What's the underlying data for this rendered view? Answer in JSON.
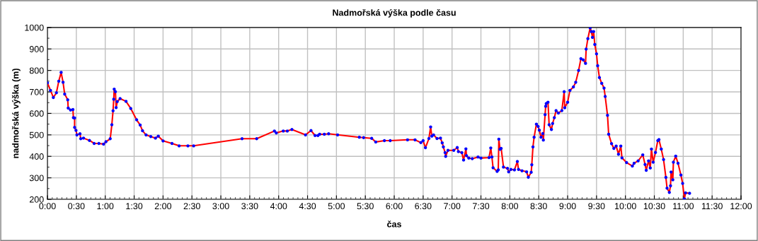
{
  "chart_data": {
    "type": "line",
    "title": "Nadmořská výška podle času",
    "xlabel": "čas",
    "ylabel": "nadmořská výška (m)",
    "xlim": [
      0,
      12
    ],
    "ylim": [
      200,
      1000
    ],
    "xticks": [
      {
        "value": 0,
        "label": "0:00"
      },
      {
        "value": 0.5,
        "label": "0:30"
      },
      {
        "value": 1,
        "label": "1:00"
      },
      {
        "value": 1.5,
        "label": "1:30"
      },
      {
        "value": 2,
        "label": "2:00"
      },
      {
        "value": 2.5,
        "label": "2:30"
      },
      {
        "value": 3,
        "label": "3:00"
      },
      {
        "value": 3.5,
        "label": "3:30"
      },
      {
        "value": 4,
        "label": "4:00"
      },
      {
        "value": 4.5,
        "label": "4:30"
      },
      {
        "value": 5,
        "label": "5:00"
      },
      {
        "value": 5.5,
        "label": "5:30"
      },
      {
        "value": 6,
        "label": "6:00"
      },
      {
        "value": 6.5,
        "label": "6:30"
      },
      {
        "value": 7,
        "label": "7:00"
      },
      {
        "value": 7.5,
        "label": "7:30"
      },
      {
        "value": 8,
        "label": "8:00"
      },
      {
        "value": 8.5,
        "label": "8:30"
      },
      {
        "value": 9,
        "label": "9:00"
      },
      {
        "value": 9.5,
        "label": "9:30"
      },
      {
        "value": 10,
        "label": "10:00"
      },
      {
        "value": 10.5,
        "label": "10:30"
      },
      {
        "value": 11,
        "label": "11:00"
      },
      {
        "value": 11.5,
        "label": "11:30"
      },
      {
        "value": 12,
        "label": "12:00"
      }
    ],
    "yticks": [
      200,
      300,
      400,
      500,
      600,
      700,
      800,
      900,
      1000
    ],
    "grid": true,
    "x": [
      0,
      0.053,
      0.102,
      0.155,
      0.196,
      0.237,
      0.27,
      0.298,
      0.351,
      0.359,
      0.4,
      0.441,
      0.449,
      0.47,
      0.47,
      0.494,
      0.51,
      0.563,
      0.576,
      0.624,
      0.727,
      0.808,
      0.89,
      0.971,
      1.012,
      1.086,
      1.114,
      1.135,
      1.147,
      1.155,
      1.176,
      1.188,
      1.208,
      1.257,
      1.359,
      1.441,
      1.543,
      1.604,
      1.645,
      1.706,
      1.788,
      1.869,
      1.918,
      2.0,
      2.155,
      2.278,
      2.43,
      2.53,
      3.367,
      3.62,
      3.927,
      3.96,
      4.08,
      4.15,
      4.23,
      4.465,
      4.56,
      4.63,
      4.68,
      4.71,
      4.79,
      4.865,
      5.02,
      5.396,
      5.47,
      5.61,
      5.68,
      5.83,
      5.93,
      6.23,
      6.36,
      6.46,
      6.5,
      6.54,
      6.6,
      6.63,
      6.65,
      6.68,
      6.74,
      6.8,
      6.83,
      6.85,
      6.88,
      6.89,
      6.93,
      7.03,
      7.09,
      7.11,
      7.17,
      7.2,
      7.24,
      7.25,
      7.29,
      7.35,
      7.45,
      7.5,
      7.64,
      7.67,
      7.69,
      7.71,
      7.78,
      7.8,
      7.81,
      7.83,
      7.85,
      7.89,
      7.96,
      7.98,
      8.02,
      8.08,
      8.13,
      8.15,
      8.21,
      8.29,
      8.32,
      8.37,
      8.38,
      8.4,
      8.42,
      8.46,
      8.49,
      8.51,
      8.54,
      8.57,
      8.58,
      8.61,
      8.62,
      8.63,
      8.66,
      8.68,
      8.72,
      8.74,
      8.77,
      8.8,
      8.84,
      8.9,
      8.94,
      8.95,
      9.0,
      9.04,
      9.1,
      9.14,
      9.19,
      9.23,
      9.27,
      9.31,
      9.32,
      9.35,
      9.39,
      9.41,
      9.43,
      9.45,
      9.47,
      9.5,
      9.52,
      9.55,
      9.59,
      9.63,
      9.65,
      9.69,
      9.71,
      9.76,
      9.8,
      9.84,
      9.88,
      9.92,
      9.94,
      10.02,
      10.12,
      10.15,
      10.22,
      10.3,
      10.34,
      10.36,
      10.4,
      10.43,
      10.45,
      10.48,
      10.52,
      10.56,
      10.58,
      10.62,
      10.66,
      10.7,
      10.72,
      10.76,
      10.78,
      10.79,
      10.82,
      10.83,
      10.87,
      10.91,
      10.96,
      10.99,
      11.02,
      11.04,
      11.11
    ],
    "series": [
      {
        "color": "#ff0000",
        "marker": "none",
        "values": [
          742,
          707,
          674,
          696,
          750,
          791,
          745,
          690,
          663,
          625,
          616,
          618,
          580,
          579,
          535,
          521,
          500,
          505,
          482,
          485,
          474,
          460,
          460,
          457,
          468,
          482,
          547,
          612,
          666,
          713,
          701,
          627,
          655,
          669,
          656,
          623,
          570,
          546,
          519,
          500,
          492,
          485,
          494,
          472,
          460,
          449,
          449,
          449,
          482,
          482,
          518,
          509,
          518,
          518,
          525,
          500,
          520,
          497,
          497,
          503,
          503,
          505,
          500,
          489,
          487,
          484,
          467,
          473,
          473,
          477,
          477,
          464,
          473,
          440,
          483,
          537,
          494,
          500,
          483,
          485,
          463,
          444,
          417,
          400,
          428,
          428,
          441,
          422,
          417,
          383,
          435,
          403,
          392,
          389,
          397,
          392,
          394,
          439,
          397,
          347,
          330,
          337,
          480,
          433,
          437,
          350,
          344,
          328,
          339,
          337,
          376,
          339,
          333,
          328,
          303,
          326,
          361,
          444,
          489,
          550,
          539,
          522,
          489,
          506,
          476,
          594,
          633,
          646,
          652,
          547,
          525,
          553,
          580,
          613,
          602,
          613,
          701,
          626,
          652,
          707,
          723,
          745,
          800,
          855,
          849,
          833,
          899,
          948,
          998,
          981,
          954,
          981,
          921,
          877,
          822,
          767,
          740,
          718,
          679,
          591,
          503,
          459,
          437,
          448,
          410,
          448,
          393,
          371,
          355,
          368,
          379,
          407,
          362,
          335,
          379,
          346,
          434,
          373,
          418,
          473,
          478,
          434,
          385,
          302,
          252,
          232,
          263,
          327,
          291,
          373,
          401,
          368,
          313,
          274,
          202,
          230,
          228
        ]
      },
      {
        "type": "scatter",
        "color": "#0000ff",
        "marker": "circle",
        "values": [
          742,
          707,
          674,
          696,
          750,
          791,
          745,
          690,
          663,
          625,
          616,
          618,
          580,
          579,
          535,
          521,
          500,
          505,
          482,
          485,
          474,
          460,
          460,
          457,
          468,
          482,
          547,
          612,
          666,
          713,
          701,
          627,
          655,
          669,
          656,
          623,
          570,
          546,
          519,
          500,
          492,
          485,
          494,
          472,
          460,
          449,
          449,
          449,
          482,
          482,
          518,
          509,
          518,
          518,
          525,
          500,
          520,
          497,
          497,
          503,
          503,
          505,
          500,
          489,
          487,
          484,
          467,
          473,
          473,
          477,
          477,
          464,
          473,
          440,
          483,
          537,
          494,
          500,
          483,
          485,
          463,
          444,
          417,
          400,
          428,
          428,
          441,
          422,
          417,
          383,
          435,
          403,
          392,
          389,
          397,
          392,
          394,
          439,
          397,
          347,
          330,
          337,
          480,
          433,
          437,
          350,
          344,
          328,
          339,
          337,
          376,
          339,
          333,
          328,
          303,
          326,
          361,
          444,
          489,
          550,
          539,
          522,
          489,
          506,
          476,
          594,
          633,
          646,
          652,
          547,
          525,
          553,
          580,
          613,
          602,
          613,
          701,
          626,
          652,
          707,
          723,
          745,
          800,
          855,
          849,
          833,
          899,
          948,
          998,
          981,
          954,
          981,
          921,
          877,
          822,
          767,
          740,
          718,
          679,
          591,
          503,
          459,
          437,
          448,
          410,
          448,
          393,
          371,
          355,
          368,
          379,
          407,
          362,
          335,
          379,
          346,
          434,
          373,
          418,
          473,
          478,
          434,
          385,
          302,
          252,
          232,
          263,
          327,
          291,
          373,
          401,
          368,
          313,
          274,
          202,
          230,
          228
        ]
      }
    ]
  }
}
